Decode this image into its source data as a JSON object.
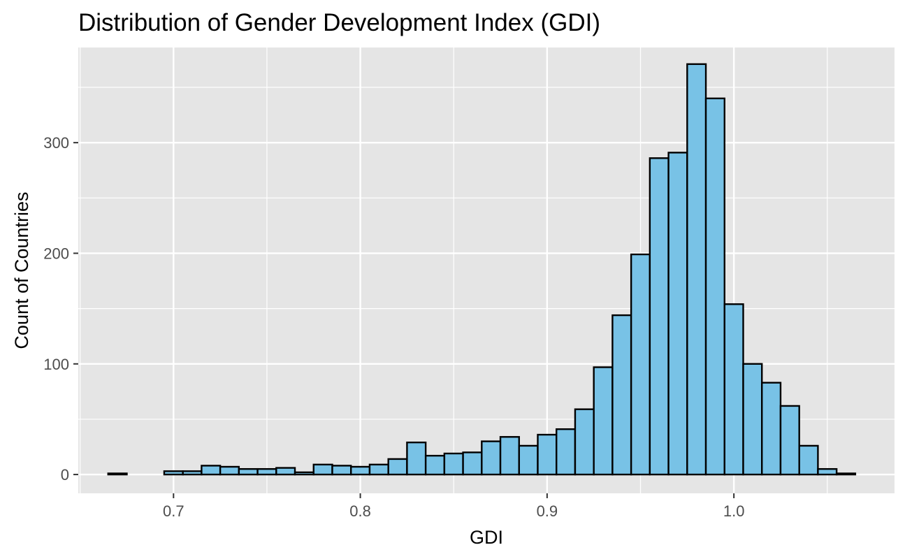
{
  "chart_data": {
    "type": "bar",
    "title": "Distribution of Gender Development Index (GDI)",
    "xlabel": "GDI",
    "ylabel": "Count of Countries",
    "xlim": [
      0.649,
      1.086
    ],
    "ylim": [
      -17,
      386
    ],
    "x_ticks": [
      0.7,
      0.8,
      0.9,
      1.0
    ],
    "x_tick_labels": [
      "0.7",
      "0.8",
      "0.9",
      "1.0"
    ],
    "y_ticks": [
      0,
      100,
      200,
      300
    ],
    "y_tick_labels": [
      "0",
      "100",
      "200",
      "300"
    ],
    "bin_width": 0.01,
    "bin_starts": [
      0.665,
      0.675,
      0.685,
      0.695,
      0.705,
      0.715,
      0.725,
      0.735,
      0.745,
      0.755,
      0.765,
      0.775,
      0.785,
      0.795,
      0.805,
      0.815,
      0.825,
      0.835,
      0.845,
      0.855,
      0.865,
      0.875,
      0.885,
      0.895,
      0.905,
      0.915,
      0.925,
      0.935,
      0.945,
      0.955,
      0.965,
      0.975,
      0.985,
      0.995,
      1.005,
      1.015,
      1.025,
      1.035,
      1.045,
      1.055
    ],
    "values": [
      1,
      0,
      0,
      3,
      3,
      8,
      7,
      5,
      5,
      6,
      2,
      9,
      8,
      7,
      9,
      14,
      29,
      17,
      19,
      20,
      30,
      34,
      26,
      36,
      41,
      59,
      97,
      144,
      199,
      286,
      291,
      371,
      340,
      154,
      100,
      83,
      62,
      26,
      5,
      1
    ],
    "grid": true,
    "fill_color": "#78c2e6",
    "edge_color": "#000000",
    "panel_color": "#e5e5e5",
    "grid_color": "#ffffff"
  }
}
